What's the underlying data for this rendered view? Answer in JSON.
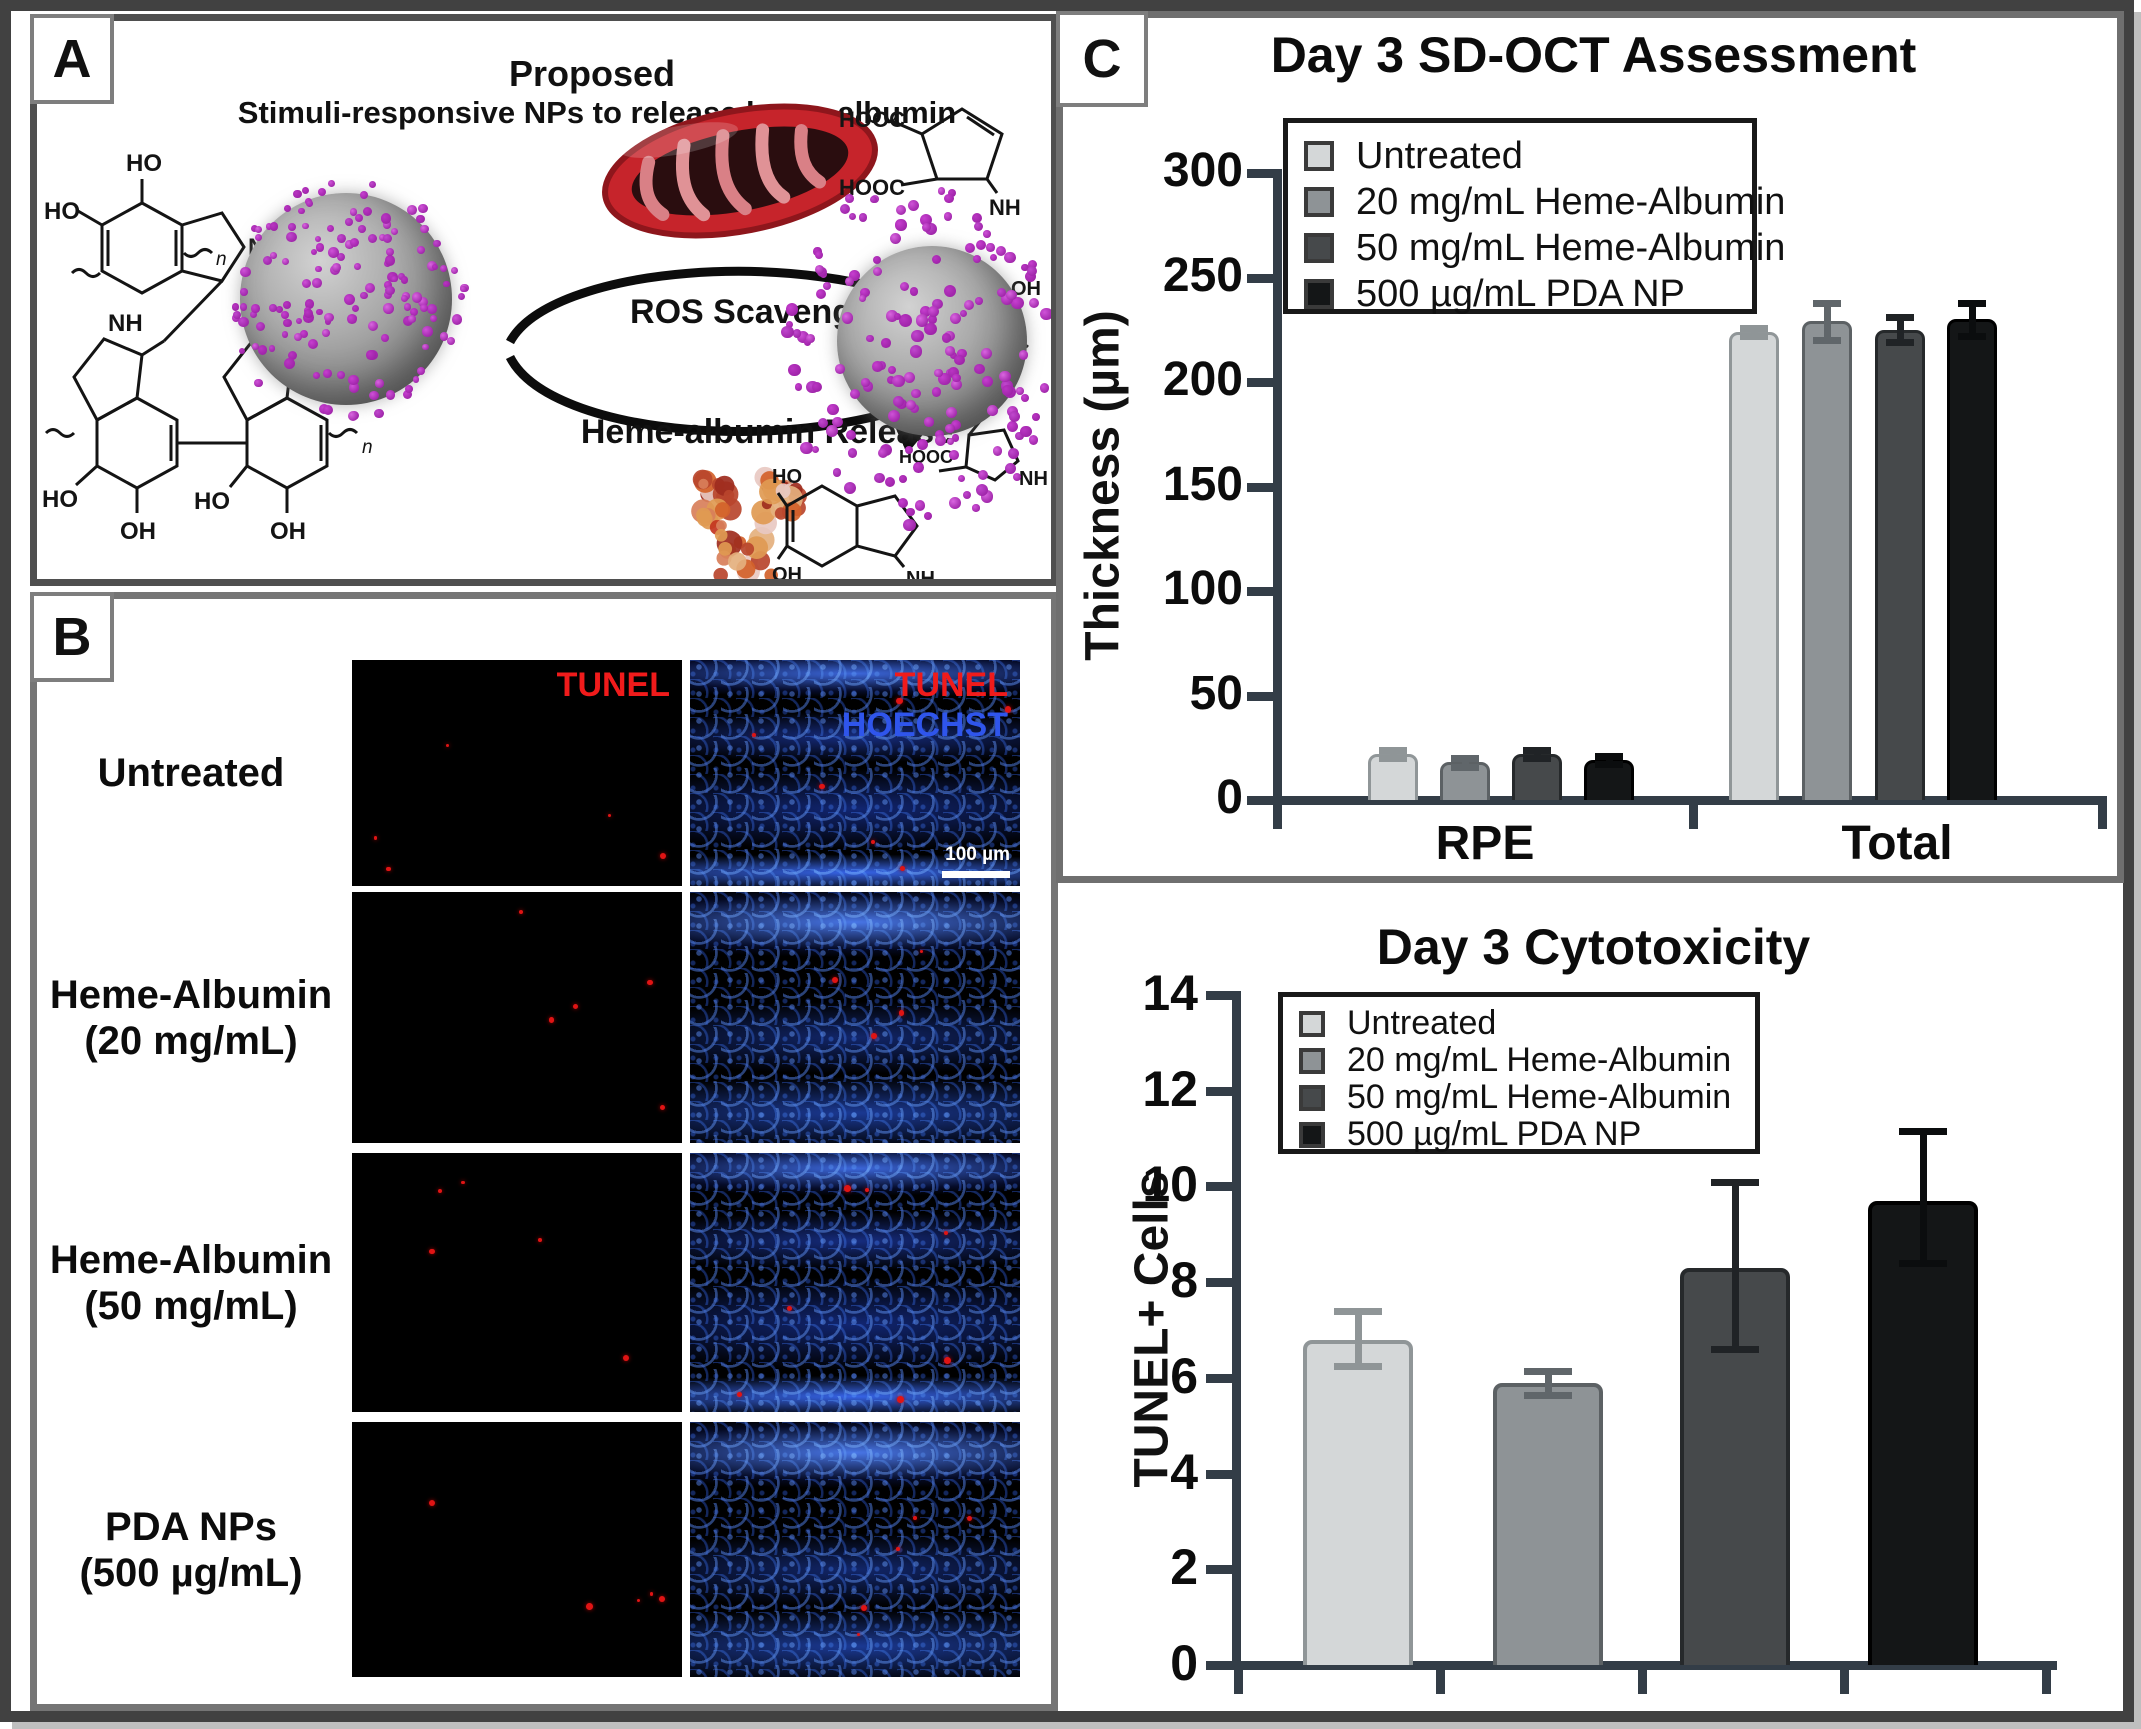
{
  "panel_labels": {
    "a": "A",
    "b": "B",
    "c": "C"
  },
  "panel_a": {
    "title_line1": "Proposed",
    "title_line2": "Stimuli-responsive NPs to release heme-albumin",
    "arrow_top_label": "ROS Scavenging",
    "arrow_bottom_label": "Heme-albumin Release",
    "atoms": {
      "ho": "HO",
      "oh": "OH",
      "nh": "NH",
      "hn": "HN",
      "n": "N",
      "h": "H",
      "hooc": "HOOC",
      "sub_n": "n"
    }
  },
  "panel_b": {
    "left_header": "TUNEL",
    "right_header_line1": "TUNEL",
    "right_header_line2": "HOECHST",
    "scale_bar_label": "100 µm",
    "tunel_color": "#f01b1b",
    "hoechst_color": "#2f55ec",
    "rows": [
      {
        "label_lines": [
          "Untreated"
        ]
      },
      {
        "label_lines": [
          "Heme-Albumin",
          "(20 mg/mL)"
        ]
      },
      {
        "label_lines": [
          "Heme-Albumin",
          "(50 mg/mL)"
        ]
      },
      {
        "label_lines": [
          "PDA NPs",
          "(500 µg/mL)"
        ]
      }
    ]
  },
  "legend": {
    "entries": [
      {
        "label": "Untreated",
        "fill": "#d4d7d8",
        "stroke": "#909698",
        "error": "#8f9597"
      },
      {
        "label": "20 mg/mL Heme-Albumin",
        "fill": "#8e9396",
        "stroke": "#5c6164",
        "error": "#60666a"
      },
      {
        "label": "50 mg/mL Heme-Albumin",
        "fill": "#46494b",
        "stroke": "#26292b",
        "error": "#202326"
      },
      {
        "label": "500 µg/mL PDA NP",
        "fill": "#141617",
        "stroke": "#000000",
        "error": "#0b0d0e"
      }
    ]
  },
  "axis_color": "#333d47",
  "chart_data": [
    {
      "type": "bar",
      "title": "Day 3 SD-OCT Assessment",
      "ylabel": "Thickness (µm)",
      "ylim": [
        0,
        300
      ],
      "yticks": [
        0,
        50,
        100,
        150,
        200,
        250,
        300
      ],
      "categories": [
        "RPE",
        "Total"
      ],
      "series": [
        {
          "name": "Untreated",
          "values": [
            22,
            224
          ],
          "errors": [
            2,
            2
          ]
        },
        {
          "name": "20 mg/mL Heme-Albumin",
          "values": [
            18,
            229
          ],
          "errors": [
            2,
            9
          ]
        },
        {
          "name": "50 mg/mL Heme-Albumin",
          "values": [
            22,
            225
          ],
          "errors": [
            2,
            6
          ]
        },
        {
          "name": "500 µg/mL PDA NP",
          "values": [
            19,
            230
          ],
          "errors": [
            2,
            8
          ]
        }
      ],
      "legend_position": "top-left",
      "grid": false
    },
    {
      "type": "bar",
      "title": "Day 3 Cytotoxicity",
      "ylabel": "TUNEL+ Cells",
      "ylim": [
        0,
        14
      ],
      "yticks": [
        0,
        2,
        4,
        6,
        8,
        10,
        12,
        14
      ],
      "categories": [
        "Untreated",
        "20 mg/mL Heme-Albumin",
        "50 mg/mL Heme-Albumin",
        "500 µg/mL PDA NP"
      ],
      "values": [
        6.8,
        5.9,
        8.3,
        9.7
      ],
      "errors_up": [
        0.6,
        0.25,
        1.8,
        1.45
      ],
      "errors_down": [
        0.55,
        0.25,
        1.7,
        1.3
      ],
      "x_tick_labels": [],
      "legend_position": "top-left",
      "grid": false
    }
  ]
}
